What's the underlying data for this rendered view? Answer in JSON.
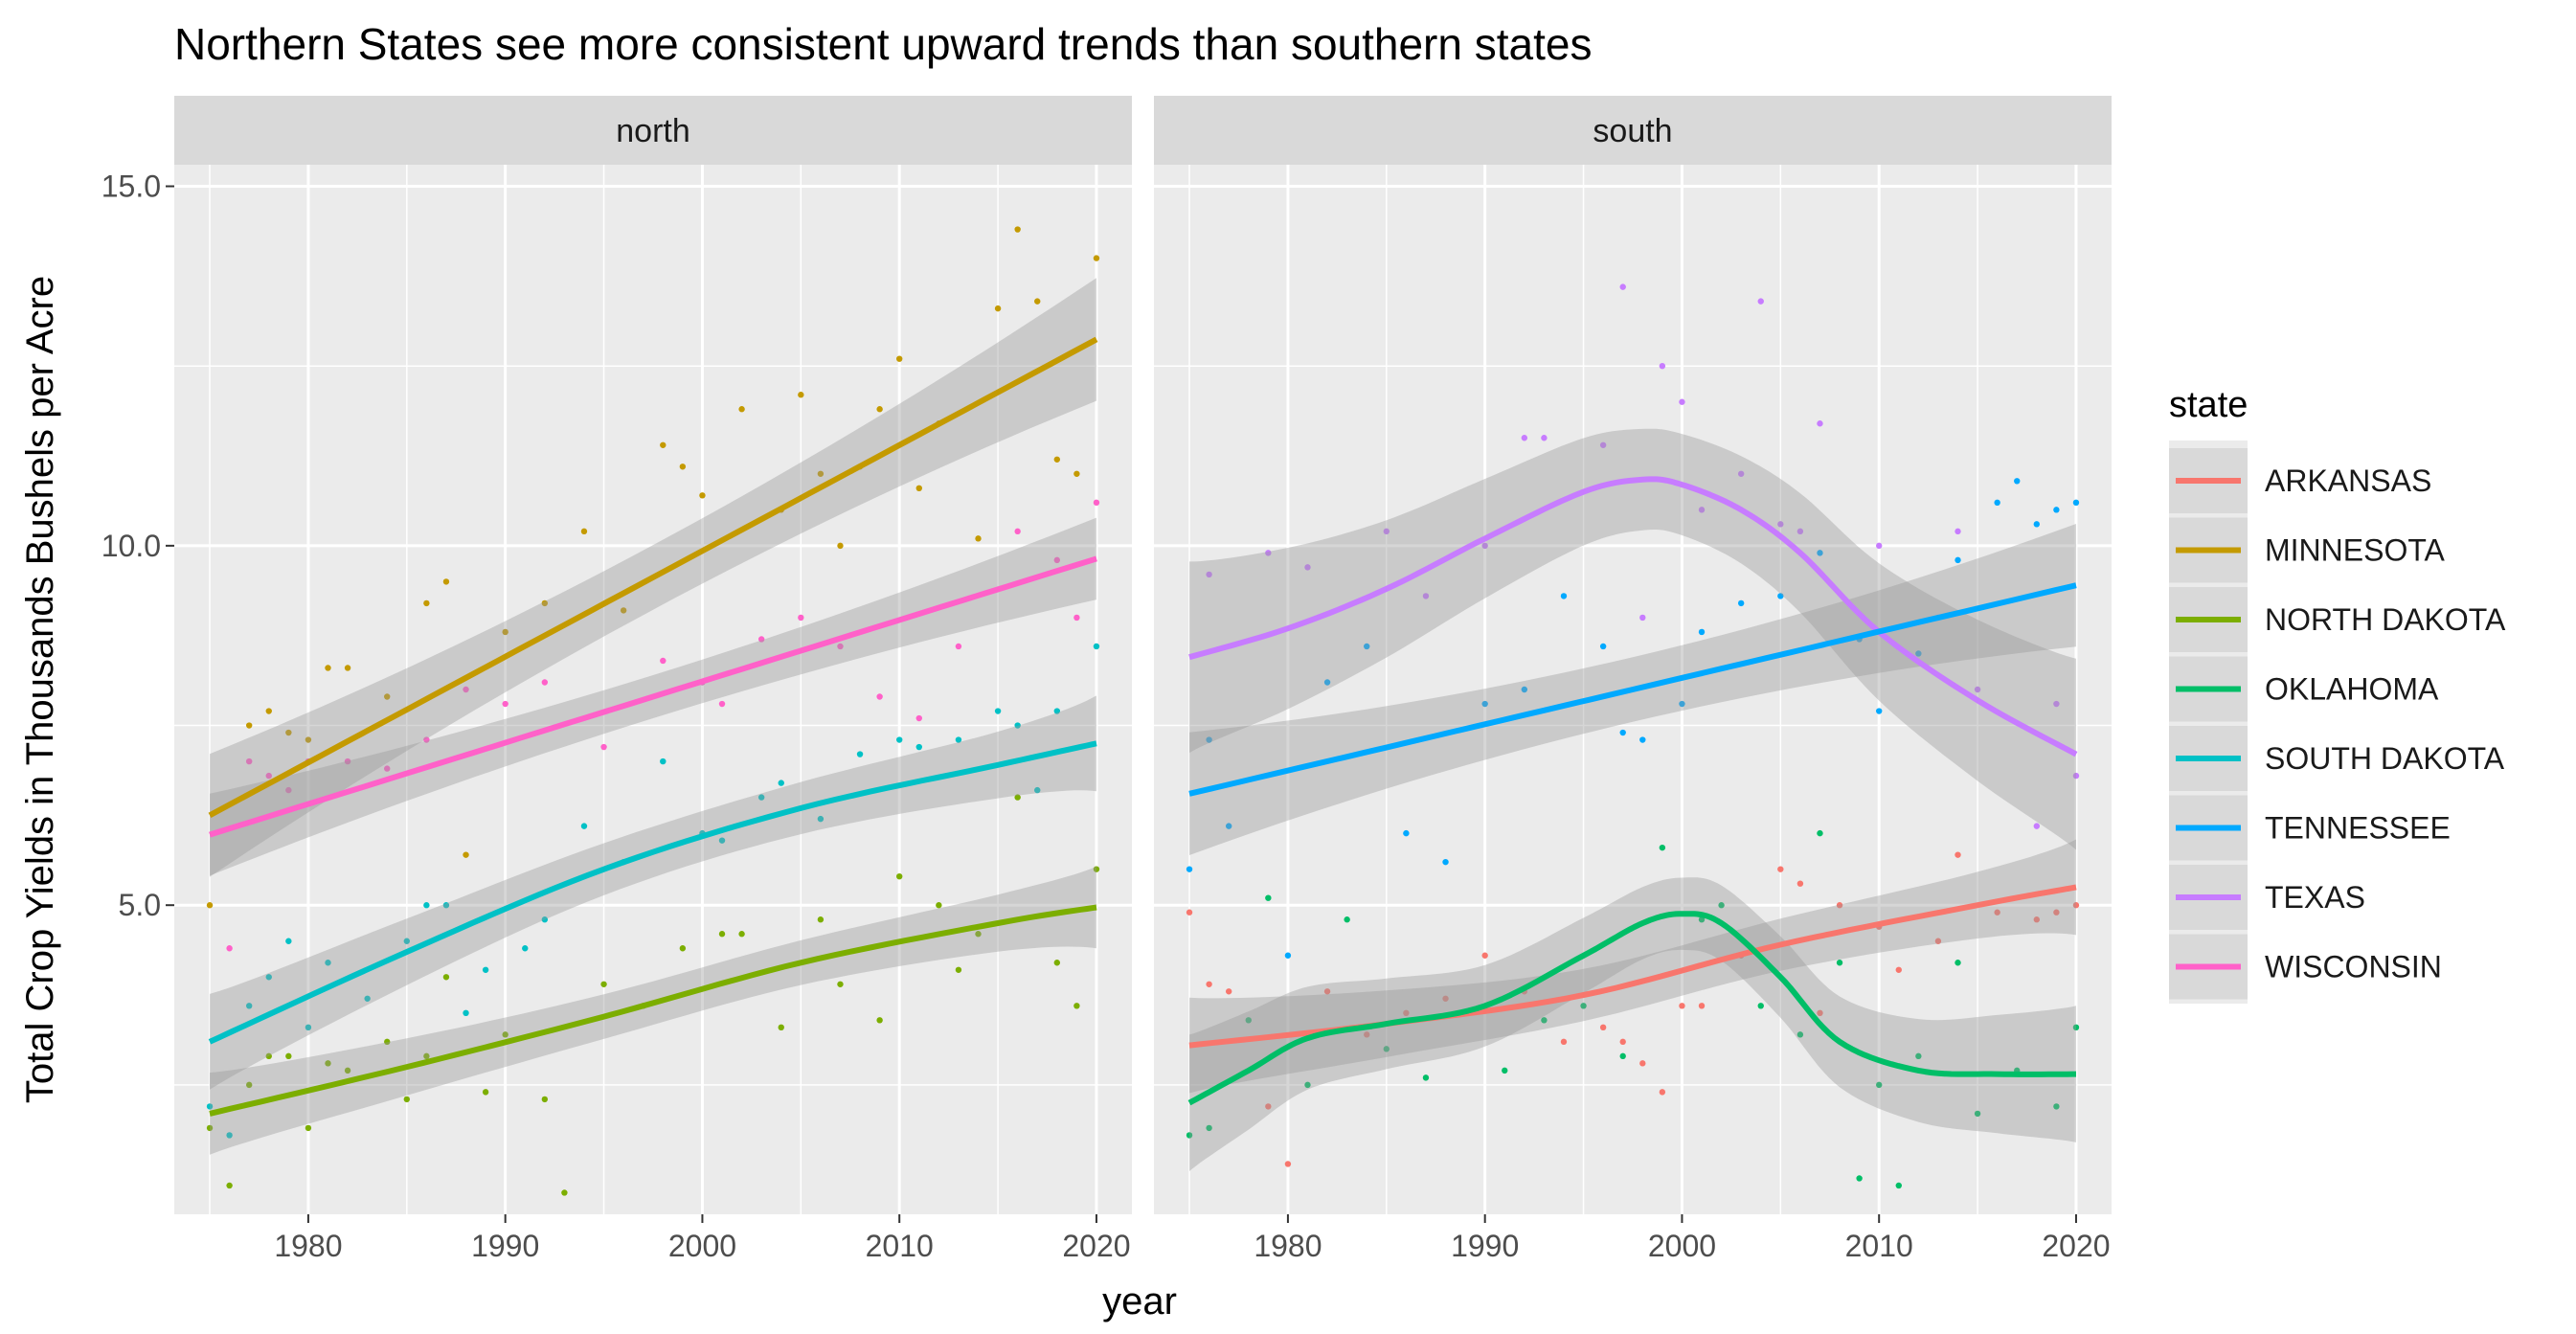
{
  "chart_data": {
    "type": "line",
    "title": "Northern States see more consistent upward trends than southern states",
    "xlabel": "year",
    "ylabel": "Total Crop Yields in Thousands Bushels per Acre",
    "xlim": [
      1973.2,
      2021.8
    ],
    "ylim": [
      0.7,
      15.3
    ],
    "x_ticks": [
      1980,
      1990,
      2000,
      2010,
      2020
    ],
    "y_ticks": [
      5.0,
      10.0,
      15.0
    ],
    "y_tick_labels": [
      "5.0",
      "10.0",
      "15.0"
    ],
    "x_tick_labels": [
      "1980",
      "1990",
      "2000",
      "2010",
      "2020"
    ],
    "grid": true,
    "panel_background": "#ebebeb",
    "strip_background": "#d9d9d9",
    "legend": {
      "title": "state",
      "position": "right"
    },
    "facets": [
      {
        "label": "north",
        "series": [
          {
            "name": "MINNESOTA",
            "color": "#C49A00",
            "smooth_x": [
              1975,
              2020
            ],
            "smooth_y": [
              6.25,
              12.87
            ],
            "se": 0.45
          },
          {
            "name": "WISCONSIN",
            "color": "#FF61C9",
            "smooth_x": [
              1975,
              2020
            ],
            "smooth_y": [
              5.98,
              9.82
            ],
            "se": 0.3
          },
          {
            "name": "SOUTH DAKOTA",
            "color": "#00C1C6",
            "smooth_x": [
              1975,
              1985,
              1995,
              2005,
              2015,
              2020
            ],
            "smooth_y": [
              3.1,
              4.35,
              5.5,
              6.35,
              6.95,
              7.25
            ],
            "se": 0.35
          },
          {
            "name": "NORTH DAKOTA",
            "color": "#7CAE00",
            "smooth_x": [
              1975,
              1985,
              1995,
              2005,
              2015,
              2020
            ],
            "smooth_y": [
              2.1,
              2.75,
              3.45,
              4.2,
              4.75,
              4.97
            ],
            "se": 0.3
          }
        ],
        "points": [
          {
            "series": "MINNESOTA",
            "x": [
              1975,
              1977,
              1978,
              1979,
              1980,
              1981,
              1982,
              1984,
              1986,
              1987,
              1988,
              1990,
              1992,
              1994,
              1996,
              1998,
              1999,
              2000,
              2002,
              2004,
              2005,
              2006,
              2007,
              2008,
              2009,
              2010,
              2011,
              2012,
              2014,
              2015,
              2016,
              2017,
              2018,
              2019,
              2020
            ],
            "y": [
              5.0,
              7.5,
              7.7,
              7.4,
              7.3,
              8.3,
              8.3,
              7.9,
              9.2,
              9.5,
              5.7,
              8.8,
              9.2,
              10.2,
              9.1,
              11.4,
              11.1,
              10.7,
              11.9,
              10.5,
              12.1,
              11.0,
              10.0,
              11.1,
              11.9,
              12.6,
              10.8,
              11.7,
              10.1,
              13.3,
              14.4,
              13.4,
              11.2,
              11.0,
              14.0
            ]
          },
          {
            "series": "WISCONSIN",
            "x": [
              1976,
              1977,
              1978,
              1979,
              1980,
              1982,
              1984,
              1986,
              1988,
              1990,
              1992,
              1995,
              1998,
              2000,
              2001,
              2003,
              2005,
              2007,
              2009,
              2011,
              2013,
              2016,
              2018,
              2019,
              2020
            ],
            "y": [
              4.4,
              7.0,
              6.8,
              6.6,
              7.0,
              7.0,
              6.9,
              7.3,
              8.0,
              7.8,
              8.1,
              7.2,
              8.4,
              8.1,
              7.8,
              8.7,
              9.0,
              8.6,
              7.9,
              7.6,
              8.6,
              10.2,
              9.8,
              9.0,
              10.6
            ]
          },
          {
            "series": "SOUTH DAKOTA",
            "x": [
              1975,
              1976,
              1977,
              1978,
              1979,
              1980,
              1981,
              1983,
              1985,
              1986,
              1987,
              1988,
              1989,
              1991,
              1992,
              1994,
              1996,
              1998,
              2000,
              2001,
              2003,
              2004,
              2006,
              2008,
              2010,
              2011,
              2013,
              2015,
              2016,
              2017,
              2018,
              2020
            ],
            "y": [
              2.2,
              1.8,
              3.6,
              4.0,
              4.5,
              3.3,
              4.2,
              3.7,
              4.5,
              5.0,
              5.0,
              3.5,
              4.1,
              4.4,
              4.8,
              6.1,
              5.6,
              7.0,
              6.0,
              5.9,
              6.5,
              6.7,
              6.2,
              7.1,
              7.3,
              7.2,
              7.3,
              7.7,
              7.5,
              6.6,
              7.7,
              8.6
            ]
          },
          {
            "series": "NORTH DAKOTA",
            "x": [
              1975,
              1976,
              1977,
              1978,
              1979,
              1980,
              1981,
              1982,
              1984,
              1985,
              1986,
              1987,
              1989,
              1990,
              1992,
              1993,
              1995,
              1997,
              1999,
              2001,
              2002,
              2004,
              2006,
              2007,
              2009,
              2010,
              2012,
              2013,
              2014,
              2016,
              2018,
              2019,
              2020
            ],
            "y": [
              1.9,
              1.1,
              2.5,
              2.9,
              2.9,
              1.9,
              2.8,
              2.7,
              3.1,
              2.3,
              2.9,
              4.0,
              2.4,
              3.2,
              2.3,
              1.0,
              3.9,
              3.6,
              4.4,
              4.6,
              4.6,
              3.3,
              4.8,
              3.9,
              3.4,
              5.4,
              5.0,
              4.1,
              4.6,
              6.5,
              4.2,
              3.6,
              5.5
            ]
          }
        ]
      },
      {
        "label": "south",
        "series": [
          {
            "name": "TEXAS",
            "color": "#C77CFF",
            "smooth_x": [
              1975,
              1980,
              1985,
              1990,
              1995,
              1998,
              2000,
              2003,
              2006,
              2010,
              2015,
              2020
            ],
            "smooth_y": [
              8.45,
              8.85,
              9.4,
              10.1,
              10.75,
              10.92,
              10.85,
              10.5,
              9.9,
              8.8,
              7.85,
              7.1
            ],
            "se": 0.7
          },
          {
            "name": "TENNESSEE",
            "color": "#00A9FF",
            "smooth_x": [
              1975,
              2020
            ],
            "smooth_y": [
              6.55,
              9.45
            ],
            "se": 0.45
          },
          {
            "name": "ARKANSAS",
            "color": "#F8766D",
            "smooth_x": [
              1975,
              1985,
              1995,
              2005,
              2015,
              2020
            ],
            "smooth_y": [
              3.05,
              3.35,
              3.75,
              4.45,
              5.0,
              5.25
            ],
            "se": 0.35
          },
          {
            "name": "OKLAHOMA",
            "color": "#00BE67",
            "smooth_x": [
              1975,
              1978,
              1981,
              1985,
              1990,
              1995,
              1998,
              2000,
              2002,
              2005,
              2008,
              2012,
              2016,
              2020
            ],
            "smooth_y": [
              2.25,
              2.7,
              3.15,
              3.35,
              3.6,
              4.3,
              4.75,
              4.88,
              4.75,
              4.0,
              3.1,
              2.7,
              2.65,
              2.65
            ],
            "se": 0.5
          }
        ],
        "points": [
          {
            "series": "TEXAS",
            "x": [
              1976,
              1979,
              1981,
              1985,
              1987,
              1990,
              1992,
              1993,
              1996,
              1997,
              1998,
              1999,
              2000,
              2001,
              2003,
              2004,
              2005,
              2006,
              2007,
              2010,
              2013,
              2014,
              2015,
              2018,
              2019,
              2020
            ],
            "y": [
              9.6,
              9.9,
              9.7,
              10.2,
              9.3,
              10.0,
              11.5,
              11.5,
              11.4,
              13.6,
              9.0,
              12.5,
              12.0,
              10.5,
              11.0,
              13.4,
              10.3,
              10.2,
              11.7,
              10.0,
              9.0,
              10.2,
              8.0,
              6.1,
              7.8,
              6.8
            ]
          },
          {
            "series": "TENNESSEE",
            "x": [
              1975,
              1976,
              1977,
              1980,
              1982,
              1984,
              1986,
              1988,
              1990,
              1992,
              1994,
              1996,
              1997,
              1998,
              2000,
              2001,
              2003,
              2005,
              2007,
              2009,
              2010,
              2012,
              2014,
              2016,
              2017,
              2018,
              2019,
              2020
            ],
            "y": [
              5.5,
              7.3,
              6.1,
              4.3,
              8.1,
              8.6,
              6.0,
              5.6,
              7.8,
              8.0,
              9.3,
              8.6,
              7.4,
              7.3,
              7.8,
              8.8,
              9.2,
              9.3,
              9.9,
              8.7,
              7.7,
              8.5,
              9.8,
              10.6,
              10.9,
              10.3,
              10.5,
              10.6
            ]
          },
          {
            "series": "ARKANSAS",
            "x": [
              1975,
              1976,
              1977,
              1979,
              1980,
              1982,
              1984,
              1986,
              1988,
              1990,
              1992,
              1994,
              1996,
              1997,
              1998,
              1999,
              2000,
              2001,
              2003,
              2005,
              2006,
              2007,
              2008,
              2010,
              2011,
              2013,
              2014,
              2016,
              2018,
              2019,
              2020
            ],
            "y": [
              4.9,
              3.9,
              3.8,
              2.2,
              1.4,
              3.8,
              3.2,
              3.5,
              3.7,
              4.3,
              3.8,
              3.1,
              3.3,
              3.1,
              2.8,
              2.4,
              3.6,
              3.6,
              4.3,
              5.5,
              5.3,
              3.5,
              5.0,
              4.7,
              4.1,
              4.5,
              5.7,
              4.9,
              4.8,
              4.9,
              5.0
            ]
          },
          {
            "series": "OKLAHOMA",
            "x": [
              1975,
              1976,
              1978,
              1979,
              1981,
              1983,
              1985,
              1987,
              1989,
              1991,
              1993,
              1995,
              1997,
              1999,
              2001,
              2002,
              2004,
              2006,
              2007,
              2008,
              2009,
              2010,
              2011,
              2012,
              2014,
              2015,
              2017,
              2019,
              2020
            ],
            "y": [
              1.8,
              1.9,
              3.4,
              5.1,
              2.5,
              4.8,
              3.0,
              2.6,
              3.5,
              2.7,
              3.4,
              3.6,
              2.9,
              5.8,
              4.8,
              5.0,
              3.6,
              3.2,
              6.0,
              4.2,
              1.2,
              2.5,
              1.1,
              2.9,
              4.2,
              2.1,
              2.7,
              2.2,
              3.3
            ]
          }
        ]
      }
    ],
    "legend_entries": [
      "ARKANSAS",
      "MINNESOTA",
      "NORTH DAKOTA",
      "OKLAHOMA",
      "SOUTH DAKOTA",
      "TENNESSEE",
      "TEXAS",
      "WISCONSIN"
    ],
    "legend_colors": [
      "#F8766D",
      "#C49A00",
      "#7CAE00",
      "#00BE67",
      "#00C1C6",
      "#00A9FF",
      "#C77CFF",
      "#FF61C9"
    ]
  }
}
